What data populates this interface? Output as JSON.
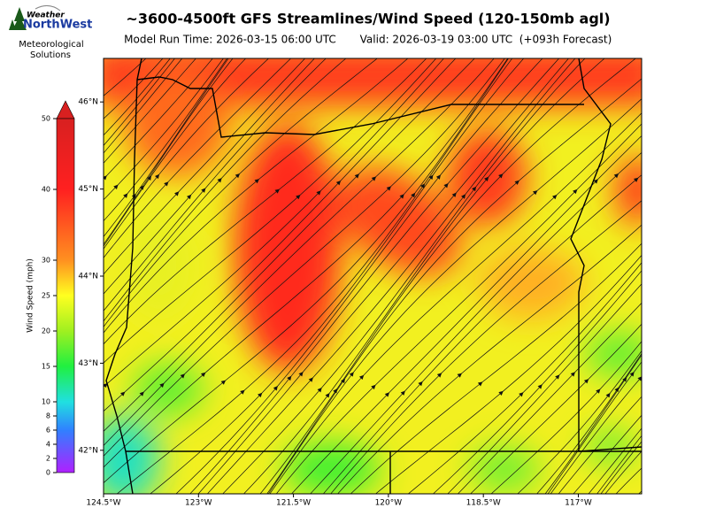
{
  "logo": {
    "name_top": "Weather",
    "name_bottom": "NorthWest",
    "tagline_1": "Meteorological",
    "tagline_2": "Solutions"
  },
  "header": {
    "title": "~3600-4500ft GFS Streamlines/Wind Speed (120-150mb agl)",
    "model_run": "Model Run Time: 2026-03-15 06:00 UTC",
    "valid": "Valid: 2026-03-19 03:00 UTC  (+093h Forecast)"
  },
  "map": {
    "xlim": [
      -124.5,
      -116
    ],
    "ylim": [
      41.5,
      46.5
    ],
    "xticks": [
      {
        "value": -124.5,
        "label": "124.5°W"
      },
      {
        "value": -123,
        "label": "123°W"
      },
      {
        "value": -121.5,
        "label": "121.5°W"
      },
      {
        "value": -120,
        "label": "120°W"
      },
      {
        "value": -118.5,
        "label": "118.5°W"
      },
      {
        "value": -117,
        "label": "117°W"
      }
    ],
    "yticks": [
      {
        "value": 42,
        "label": "42°N"
      },
      {
        "value": 43,
        "label": "43°N"
      },
      {
        "value": 44,
        "label": "44°N"
      },
      {
        "value": 45,
        "label": "45°N"
      },
      {
        "value": 46,
        "label": "46°N"
      }
    ]
  },
  "colorbar": {
    "label": "Wind Speed (mph)",
    "lim": [
      0,
      50
    ],
    "ticks": [
      0,
      2,
      4,
      6,
      8,
      10,
      15,
      20,
      25,
      30,
      40,
      50
    ]
  }
}
